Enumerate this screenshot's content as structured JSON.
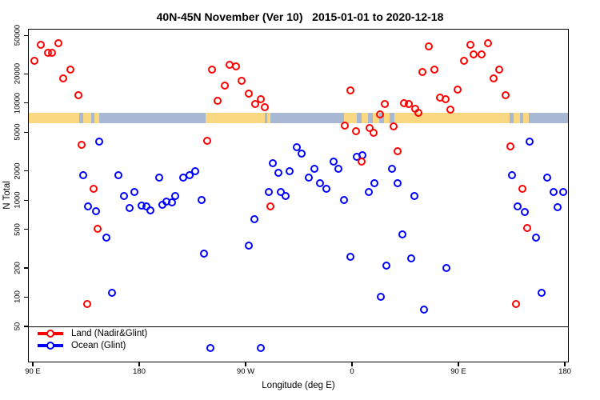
{
  "title": "40N-45N November (Ver 10)   2015-01-01 to 2020-12-18",
  "y_axis": {
    "label": "N Total",
    "scale": "log",
    "ticks": [
      50000,
      20000,
      10000,
      5000,
      2000,
      1000,
      500,
      200,
      100,
      50
    ]
  },
  "x_axis": {
    "label": "Longitude (deg E)",
    "ticks": [
      {
        "label": "90 E",
        "lon": 90
      },
      {
        "label": "180",
        "lon": 180
      },
      {
        "label": "90 W",
        "lon": 270
      },
      {
        "label": "0",
        "lon": 360
      },
      {
        "label": "90 E",
        "lon": 450
      },
      {
        "label": "180",
        "lon": 540
      }
    ]
  },
  "legend": {
    "items": [
      {
        "label": "Land (Nadir&Glint)",
        "color": "#ff0000"
      },
      {
        "label": "Ocean (Glint)",
        "color": "#0000ff"
      }
    ]
  },
  "reference_line": {
    "value": 50
  },
  "map_band": {
    "description": "land/ocean strip for 40N-45N latitude band drawn across plot near N=6000-7800",
    "ocean_color": "#a7b9d2",
    "land_color": "#fad781",
    "ocean_extent": [
      85.9,
      542.5
    ],
    "land_segments": [
      [
        85.9,
        129.2
      ],
      [
        132.6,
        139.4
      ],
      [
        142.1,
        146.2
      ],
      [
        236.2,
        286.2
      ],
      [
        288.3,
        291.0
      ],
      [
        353.2,
        364.1
      ],
      [
        368.1,
        373.5
      ],
      [
        377.6,
        383.0
      ],
      [
        387.1,
        391.8
      ],
      [
        395.8,
        493.3
      ],
      [
        496.7,
        502.1
      ],
      [
        504.8,
        509.5
      ]
    ]
  },
  "chart_data": {
    "type": "scatter",
    "title": "40N-45N November (Ver 10)   2015-01-01 to 2020-12-18",
    "xlabel": "Longitude (deg E)",
    "ylabel": "N Total",
    "y_scale": "log",
    "ylim": [
      27,
      52000
    ],
    "x_axis_note": "axis longitude runs 90E eastward wrapping past 180 and 0 back to 180 (values 90-540)",
    "xlim": [
      85.9,
      542.6
    ],
    "legend_position": "bottom-left",
    "series": [
      {
        "name": "Land (Nadir&Glint)",
        "color": "#ff0000",
        "points": [
          [
            91.4,
            27000
          ],
          [
            96.8,
            40000
          ],
          [
            102.9,
            33000
          ],
          [
            106.2,
            33000
          ],
          [
            111.7,
            41000
          ],
          [
            115.7,
            18000
          ],
          [
            121.8,
            22000
          ],
          [
            128.5,
            12000
          ],
          [
            131.3,
            3700
          ],
          [
            136.0,
            85
          ],
          [
            141.4,
            1300
          ],
          [
            144.8,
            510
          ],
          [
            237.5,
            4100
          ],
          [
            241.6,
            22000
          ],
          [
            246.3,
            10500
          ],
          [
            252.4,
            15000
          ],
          [
            256.5,
            25000
          ],
          [
            261.9,
            24000
          ],
          [
            266.6,
            17000
          ],
          [
            272.7,
            12500
          ],
          [
            278.1,
            9800
          ],
          [
            282.9,
            11000
          ],
          [
            286.2,
            9000
          ],
          [
            291.0,
            860
          ],
          [
            353.9,
            5900
          ],
          [
            358.6,
            13500
          ],
          [
            363.4,
            5100
          ],
          [
            368.1,
            2500
          ],
          [
            374.9,
            5500
          ],
          [
            378.3,
            4900
          ],
          [
            383.7,
            7700
          ],
          [
            387.7,
            9800
          ],
          [
            395.2,
            5700
          ],
          [
            398.6,
            3200
          ],
          [
            404.0,
            10000
          ],
          [
            408.0,
            9800
          ],
          [
            413.4,
            8700
          ],
          [
            416.2,
            7900
          ],
          [
            419.5,
            21000
          ],
          [
            425.0,
            38000
          ],
          [
            429.7,
            22000
          ],
          [
            434.4,
            11300
          ],
          [
            439.2,
            11000
          ],
          [
            443.2,
            8600
          ],
          [
            449.3,
            13700
          ],
          [
            454.7,
            27000
          ],
          [
            460.1,
            40000
          ],
          [
            462.9,
            32000
          ],
          [
            469.6,
            32000
          ],
          [
            475.0,
            41000
          ],
          [
            479.8,
            18000
          ],
          [
            484.5,
            22000
          ],
          [
            489.9,
            12000
          ],
          [
            494.0,
            3600
          ],
          [
            498.7,
            85
          ],
          [
            504.1,
            1300
          ],
          [
            508.2,
            520
          ]
        ]
      },
      {
        "name": "Ocean (Glint)",
        "color": "#0000ff",
        "points": [
          [
            132.6,
            1800
          ],
          [
            136.7,
            860
          ],
          [
            143.5,
            770
          ],
          [
            146.2,
            4000
          ],
          [
            152.3,
            410
          ],
          [
            157.0,
            110
          ],
          [
            162.4,
            1800
          ],
          [
            167.1,
            1100
          ],
          [
            171.9,
            830
          ],
          [
            175.9,
            1200
          ],
          [
            182.0,
            880
          ],
          [
            186.1,
            860
          ],
          [
            189.5,
            790
          ],
          [
            196.9,
            1700
          ],
          [
            199.6,
            900
          ],
          [
            203.0,
            960
          ],
          [
            207.7,
            940
          ],
          [
            210.4,
            1100
          ],
          [
            217.2,
            1700
          ],
          [
            222.6,
            1800
          ],
          [
            227.4,
            2000
          ],
          [
            232.8,
            1000
          ],
          [
            234.8,
            280
          ],
          [
            240.2,
            30
          ],
          [
            272.7,
            340
          ],
          [
            277.4,
            640
          ],
          [
            282.9,
            30
          ],
          [
            289.6,
            1200
          ],
          [
            293.0,
            2400
          ],
          [
            297.8,
            1900
          ],
          [
            299.8,
            1200
          ],
          [
            303.8,
            1100
          ],
          [
            307.2,
            2000
          ],
          [
            313.3,
            3500
          ],
          [
            317.4,
            3000
          ],
          [
            323.5,
            1700
          ],
          [
            328.2,
            2100
          ],
          [
            332.9,
            1500
          ],
          [
            338.3,
            1300
          ],
          [
            344.4,
            2500
          ],
          [
            348.5,
            2100
          ],
          [
            353.2,
            1000
          ],
          [
            358.6,
            260
          ],
          [
            364.1,
            2800
          ],
          [
            368.8,
            2900
          ],
          [
            374.2,
            1200
          ],
          [
            379.0,
            1500
          ],
          [
            384.4,
            100
          ],
          [
            389.1,
            210
          ],
          [
            393.8,
            2100
          ],
          [
            398.6,
            1500
          ],
          [
            402.6,
            440
          ],
          [
            410.1,
            250
          ],
          [
            412.8,
            1100
          ],
          [
            420.9,
            75
          ],
          [
            439.9,
            200
          ],
          [
            495.3,
            1800
          ],
          [
            500.1,
            860
          ],
          [
            506.2,
            760
          ],
          [
            510.2,
            4000
          ],
          [
            515.6,
            410
          ],
          [
            520.3,
            110
          ],
          [
            525.1,
            1700
          ],
          [
            530.5,
            1200
          ],
          [
            533.9,
            850
          ],
          [
            538.6,
            1200
          ]
        ]
      }
    ]
  }
}
